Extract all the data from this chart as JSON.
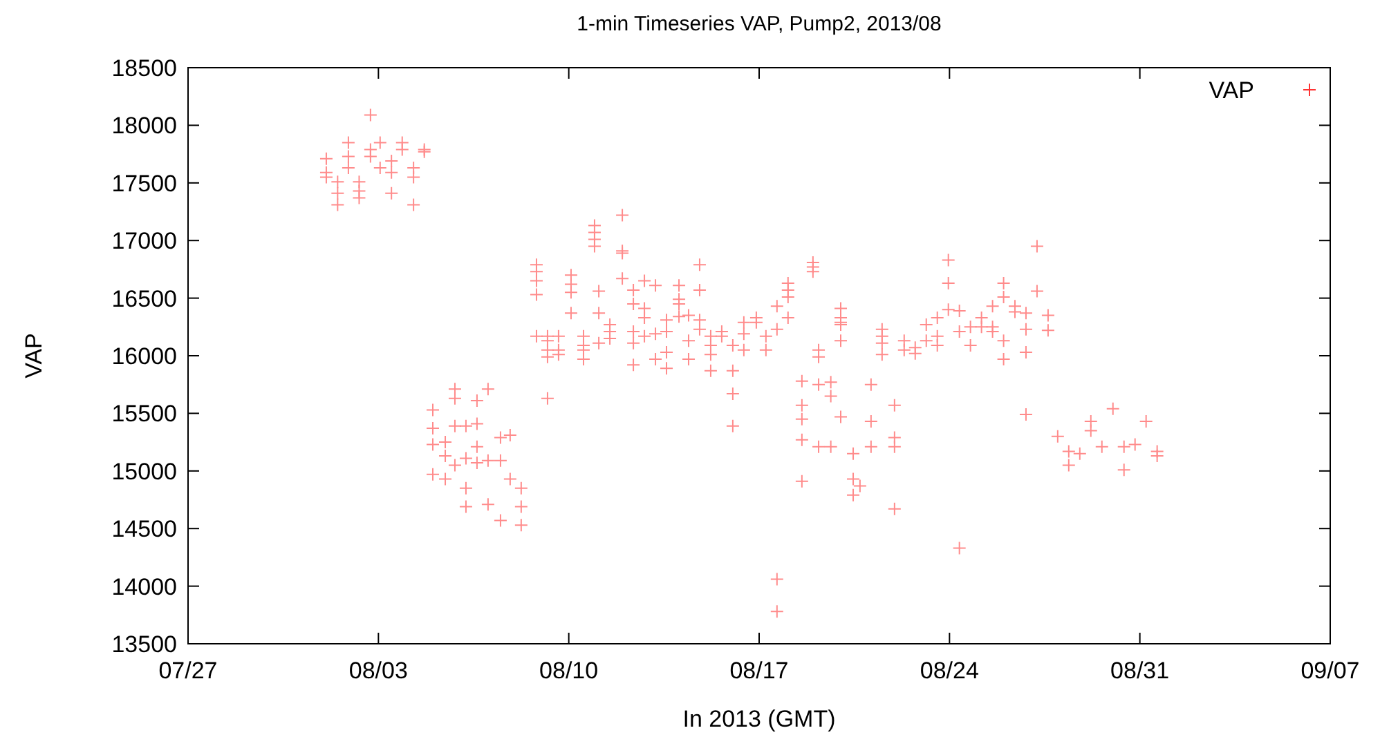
{
  "chart_data": {
    "type": "scatter",
    "title": "1-min Timeseries VAP, Pump2, 2013/08",
    "xlabel": "In 2013 (GMT)",
    "ylabel": "VAP",
    "marker": "cross",
    "legend": "top right",
    "grid": false,
    "xlim": [
      "2013-07-27",
      "2013-09-07"
    ],
    "xticks": [
      {
        "value": "2013-07-27",
        "label": "07/27"
      },
      {
        "value": "2013-08-03",
        "label": "08/03"
      },
      {
        "value": "2013-08-10",
        "label": "08/10"
      },
      {
        "value": "2013-08-17",
        "label": "08/17"
      },
      {
        "value": "2013-08-24",
        "label": "08/24"
      },
      {
        "value": "2013-08-31",
        "label": "08/31"
      },
      {
        "value": "2013-09-07",
        "label": "09/07"
      }
    ],
    "ylim": [
      13500,
      18500
    ],
    "yticks": [
      13500,
      14000,
      14500,
      15000,
      15500,
      16000,
      16500,
      17000,
      17500,
      18000,
      18500
    ],
    "series": [
      {
        "name": "VAP",
        "color": "#ff0000",
        "x": [
          "2013-08-01T02:00",
          "2013-08-01T02:00",
          "2013-08-01T02:00",
          "2013-08-01T12:00",
          "2013-08-01T12:00",
          "2013-08-01T12:00",
          "2013-08-01T21:30",
          "2013-08-01T21:30",
          "2013-08-01T21:30",
          "2013-08-02T07:00",
          "2013-08-02T07:00",
          "2013-08-02T07:00",
          "2013-08-02T17:00",
          "2013-08-02T17:00",
          "2013-08-02T17:00",
          "2013-08-03T01:30",
          "2013-08-03T01:30",
          "2013-08-03T11:30",
          "2013-08-03T11:30",
          "2013-08-03T11:30",
          "2013-08-03T21:00",
          "2013-08-03T21:00",
          "2013-08-04T07:00",
          "2013-08-04T07:00",
          "2013-08-04T07:00",
          "2013-08-04T16:30",
          "2013-08-04T16:30",
          "2013-08-05T00:00",
          "2013-08-05T00:00",
          "2013-08-05T00:00",
          "2013-08-05T00:00",
          "2013-08-05T11:00",
          "2013-08-05T11:00",
          "2013-08-05T11:00",
          "2013-08-05T19:30",
          "2013-08-05T19:30",
          "2013-08-05T19:30",
          "2013-08-05T19:30",
          "2013-08-06T05:15",
          "2013-08-06T05:15",
          "2013-08-06T05:15",
          "2013-08-06T05:15",
          "2013-08-06T15:00",
          "2013-08-06T15:00",
          "2013-08-06T15:00",
          "2013-08-06T15:00",
          "2013-08-07T00:45",
          "2013-08-07T00:45",
          "2013-08-07T00:45",
          "2013-08-07T11:45",
          "2013-08-07T11:45",
          "2013-08-07T11:45",
          "2013-08-07T20:15",
          "2013-08-07T20:15",
          "2013-08-08T06:00",
          "2013-08-08T06:00",
          "2013-08-08T06:00",
          "2013-08-08T19:30",
          "2013-08-08T19:30",
          "2013-08-08T19:30",
          "2013-08-08T19:30",
          "2013-08-08T19:30",
          "2013-08-09T05:15",
          "2013-08-09T05:15",
          "2013-08-09T05:15",
          "2013-08-09T05:15",
          "2013-08-09T05:15",
          "2013-08-09T15:00",
          "2013-08-09T15:00",
          "2013-08-09T15:00",
          "2013-08-10T02:00",
          "2013-08-10T02:00",
          "2013-08-10T02:00",
          "2013-08-10T02:00",
          "2013-08-10T13:00",
          "2013-08-10T13:00",
          "2013-08-10T13:00",
          "2013-08-10T13:00",
          "2013-08-10T22:45",
          "2013-08-10T22:45",
          "2013-08-10T22:45",
          "2013-08-10T22:45",
          "2013-08-11T02:30",
          "2013-08-11T02:30",
          "2013-08-11T02:30",
          "2013-08-11T12:15",
          "2013-08-11T12:15",
          "2013-08-11T12:15",
          "2013-08-11T23:15",
          "2013-08-11T23:15",
          "2013-08-11T23:15",
          "2013-08-11T23:15",
          "2013-08-12T09:00",
          "2013-08-12T09:00",
          "2013-08-12T09:00",
          "2013-08-12T09:00",
          "2013-08-12T09:00",
          "2013-08-12T18:45",
          "2013-08-12T18:45",
          "2013-08-12T18:45",
          "2013-08-12T18:45",
          "2013-08-13T04:30",
          "2013-08-13T04:30",
          "2013-08-13T04:30",
          "2013-08-13T14:15",
          "2013-08-13T14:15",
          "2013-08-13T14:15",
          "2013-08-13T14:15",
          "2013-08-14T01:15",
          "2013-08-14T01:15",
          "2013-08-14T01:15",
          "2013-08-14T01:15",
          "2013-08-14T09:45",
          "2013-08-14T09:45",
          "2013-08-14T09:45",
          "2013-08-14T19:30",
          "2013-08-14T19:30",
          "2013-08-14T19:30",
          "2013-08-14T19:30",
          "2013-08-15T05:15",
          "2013-08-15T05:15",
          "2013-08-15T05:15",
          "2013-08-15T05:15",
          "2013-08-15T15:00",
          "2013-08-15T15:00",
          "2013-08-16T00:45",
          "2013-08-16T00:45",
          "2013-08-16T00:45",
          "2013-08-16T00:45",
          "2013-08-16T10:30",
          "2013-08-16T10:30",
          "2013-08-16T10:30",
          "2013-08-16T21:30",
          "2013-08-16T21:30",
          "2013-08-17T06:00",
          "2013-08-17T06:00",
          "2013-08-17T15:45",
          "2013-08-17T15:45",
          "2013-08-17T15:45",
          "2013-08-17T15:45",
          "2013-08-18T01:30",
          "2013-08-18T01:30",
          "2013-08-18T01:30",
          "2013-08-18T01:30",
          "2013-08-18T13:45",
          "2013-08-18T13:45",
          "2013-08-18T13:45",
          "2013-08-18T13:45",
          "2013-08-18T13:45",
          "2013-08-18T23:30",
          "2013-08-18T23:30",
          "2013-08-18T23:30",
          "2013-08-19T04:30",
          "2013-08-19T04:30",
          "2013-08-19T04:30",
          "2013-08-19T04:30",
          "2013-08-19T15:15",
          "2013-08-19T15:15",
          "2013-08-19T15:15",
          "2013-08-20T00:00",
          "2013-08-20T00:00",
          "2013-08-20T00:00",
          "2013-08-20T00:00",
          "2013-08-20T00:00",
          "2013-08-20T00:00",
          "2013-08-20T11:00",
          "2013-08-20T11:00",
          "2013-08-20T11:00",
          "2013-08-20T17:00",
          "2013-08-21T02:45",
          "2013-08-21T02:45",
          "2013-08-21T02:45",
          "2013-08-21T12:30",
          "2013-08-21T12:30",
          "2013-08-21T12:30",
          "2013-08-21T12:30",
          "2013-08-21T23:30",
          "2013-08-21T23:30",
          "2013-08-21T23:30",
          "2013-08-21T23:30",
          "2013-08-22T08:00",
          "2013-08-22T08:00",
          "2013-08-22T17:45",
          "2013-08-22T17:45",
          "2013-08-23T03:30",
          "2013-08-23T03:30",
          "2013-08-23T13:15",
          "2013-08-23T13:15",
          "2013-08-23T13:15",
          "2013-08-23T23:00",
          "2013-08-23T23:00",
          "2013-08-23T23:00",
          "2013-08-24T08:45",
          "2013-08-24T08:45",
          "2013-08-24T08:45",
          "2013-08-24T18:30",
          "2013-08-24T18:30",
          "2013-08-25T04:15",
          "2013-08-25T04:15",
          "2013-08-25T14:00",
          "2013-08-25T14:00",
          "2013-08-25T14:00",
          "2013-08-25T23:45",
          "2013-08-25T23:45",
          "2013-08-25T23:45",
          "2013-08-25T23:45",
          "2013-08-26T09:45",
          "2013-08-26T09:45",
          "2013-08-26T19:30",
          "2013-08-26T19:30",
          "2013-08-26T19:30",
          "2013-08-26T19:30",
          "2013-08-27T05:15",
          "2013-08-27T05:15",
          "2013-08-27T15:00",
          "2013-08-27T15:00",
          "2013-08-27T23:30",
          "2013-08-28T09:15",
          "2013-08-28T09:15",
          "2013-08-28T19:00",
          "2013-08-29T04:45",
          "2013-08-29T04:45",
          "2013-08-29T14:30",
          "2013-08-30T00:15",
          "2013-08-30T10:00",
          "2013-08-30T10:00",
          "2013-08-30T19:45",
          "2013-08-31T05:30",
          "2013-08-31T15:15",
          "2013-08-31T15:15"
        ],
        "values": [
          17710,
          17590,
          17550,
          17510,
          17410,
          17310,
          17850,
          17730,
          17630,
          17430,
          17370,
          17510,
          18090,
          17730,
          17790,
          17850,
          17630,
          17590,
          17410,
          17690,
          17850,
          17790,
          17630,
          17550,
          17310,
          17790,
          17770,
          15530,
          15370,
          15230,
          14970,
          15250,
          15130,
          14930,
          15710,
          15630,
          15390,
          15050,
          15390,
          15110,
          14850,
          14690,
          15610,
          15410,
          15210,
          15070,
          15710,
          15090,
          14710,
          15290,
          15090,
          14570,
          15310,
          14930,
          14850,
          14690,
          14530,
          16790,
          16730,
          16650,
          16530,
          16170,
          16170,
          16130,
          16050,
          15990,
          15630,
          16170,
          16050,
          16010,
          16700,
          16620,
          16550,
          16370,
          16170,
          16090,
          16050,
          15970,
          17130,
          17070,
          17010,
          16950,
          16560,
          16370,
          16110,
          16270,
          16210,
          16150,
          17220,
          16910,
          16890,
          16670,
          16570,
          16450,
          16210,
          16110,
          15920,
          16650,
          16410,
          16330,
          16170,
          16610,
          16190,
          15970,
          16310,
          16210,
          16030,
          15890,
          16610,
          16490,
          16450,
          16340,
          16350,
          16130,
          15970,
          16790,
          16570,
          16310,
          16230,
          16170,
          16090,
          16010,
          15870,
          16210,
          16170,
          16090,
          15870,
          15670,
          15390,
          16290,
          16190,
          16050,
          16330,
          16290,
          16170,
          16050,
          16430,
          16230,
          14060,
          13780,
          16630,
          16570,
          16510,
          16330,
          15780,
          15570,
          15450,
          15270,
          14910,
          16810,
          16770,
          16730,
          16050,
          15990,
          15750,
          15210,
          15770,
          15650,
          15210,
          16410,
          16330,
          16290,
          16270,
          16130,
          15470,
          15150,
          14930,
          14790,
          14870,
          15750,
          15430,
          15210,
          16230,
          16170,
          16110,
          16010,
          15570,
          15290,
          15210,
          14670,
          16130,
          16050,
          16070,
          16020,
          16270,
          16130,
          16330,
          16170,
          16090,
          16830,
          16630,
          16400,
          16390,
          16210,
          14330,
          16250,
          16090,
          16330,
          16250,
          16430,
          16250,
          16210,
          16630,
          16510,
          16130,
          15970,
          16430,
          16380,
          16370,
          16230,
          16030,
          15490,
          16950,
          16560,
          16350,
          16220,
          15300,
          15170,
          15050,
          15150,
          15430,
          15350,
          15210,
          15540,
          15210,
          15010,
          15230,
          15430,
          15170,
          15130
        ]
      }
    ]
  }
}
